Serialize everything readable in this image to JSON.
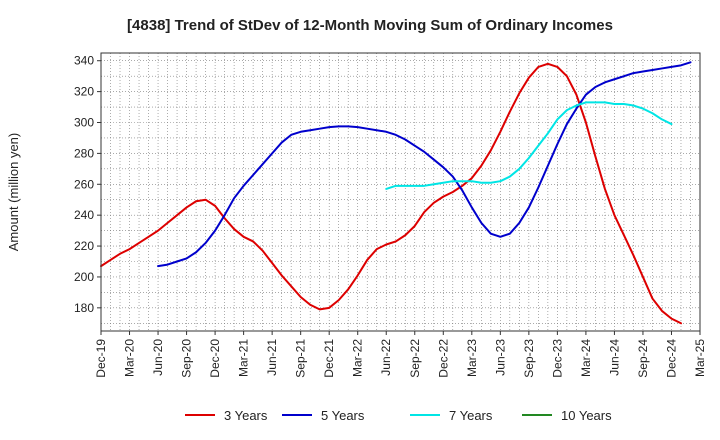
{
  "chart_data": {
    "type": "line",
    "title": "[4838]  Trend of StDev of 12-Month Moving Sum of Ordinary Incomes",
    "xlabel": "",
    "ylabel": "Amount (million yen)",
    "ylim": [
      165,
      345
    ],
    "yticks": [
      180,
      200,
      220,
      240,
      260,
      280,
      300,
      320,
      340
    ],
    "x_tick_labels": [
      "Dec-19",
      "Mar-20",
      "Jun-20",
      "Sep-20",
      "Dec-20",
      "Mar-21",
      "Jun-21",
      "Sep-21",
      "Dec-21",
      "Mar-22",
      "Jun-22",
      "Sep-22",
      "Dec-22",
      "Mar-23",
      "Jun-23",
      "Sep-23",
      "Dec-23",
      "Mar-24",
      "Jun-24",
      "Sep-24",
      "Dec-24",
      "Mar-25"
    ],
    "x_count_months": 63,
    "grid": true,
    "legend_position": "bottom",
    "series": [
      {
        "name": "3 Years",
        "color": "#dd0000",
        "start_index": 0,
        "values": [
          207,
          211,
          215,
          218,
          222,
          226,
          230,
          235,
          240,
          245,
          249,
          250,
          246,
          238,
          231,
          226,
          223,
          217,
          209,
          201,
          194,
          187,
          182,
          179,
          180,
          185,
          192,
          201,
          211,
          218,
          221,
          223,
          227,
          233,
          242,
          248,
          252,
          255,
          259,
          264,
          272,
          282,
          294,
          307,
          319,
          329,
          336,
          338,
          336,
          330,
          318,
          300,
          278,
          257,
          240,
          227,
          214,
          200,
          186,
          178,
          173,
          170
        ]
      },
      {
        "name": "5 Years",
        "color": "#0000cc",
        "start_index": 6,
        "values": [
          207,
          208,
          210,
          212,
          216,
          222,
          230,
          240,
          251,
          259,
          266,
          273,
          280,
          287,
          292,
          294,
          295,
          296,
          297,
          297.5,
          297.5,
          297,
          296,
          295,
          294,
          292,
          289,
          285,
          281,
          276,
          271,
          265,
          256,
          245,
          235,
          228,
          226,
          228,
          235,
          245,
          258,
          272,
          286,
          299,
          309,
          318,
          323,
          326,
          328,
          330,
          332,
          333,
          334,
          335,
          336,
          337,
          339
        ]
      },
      {
        "name": "7 Years",
        "color": "#00e5e5",
        "start_index": 30,
        "values": [
          257,
          259,
          259,
          259,
          259,
          260,
          261,
          262,
          262,
          262,
          261,
          261,
          262,
          265,
          270,
          277,
          285,
          293,
          302,
          308,
          311,
          313,
          313,
          313,
          312,
          312,
          311,
          309,
          306,
          302,
          299
        ]
      },
      {
        "name": "10 Years",
        "color": "#228822",
        "start_index": 0,
        "values": []
      }
    ]
  }
}
